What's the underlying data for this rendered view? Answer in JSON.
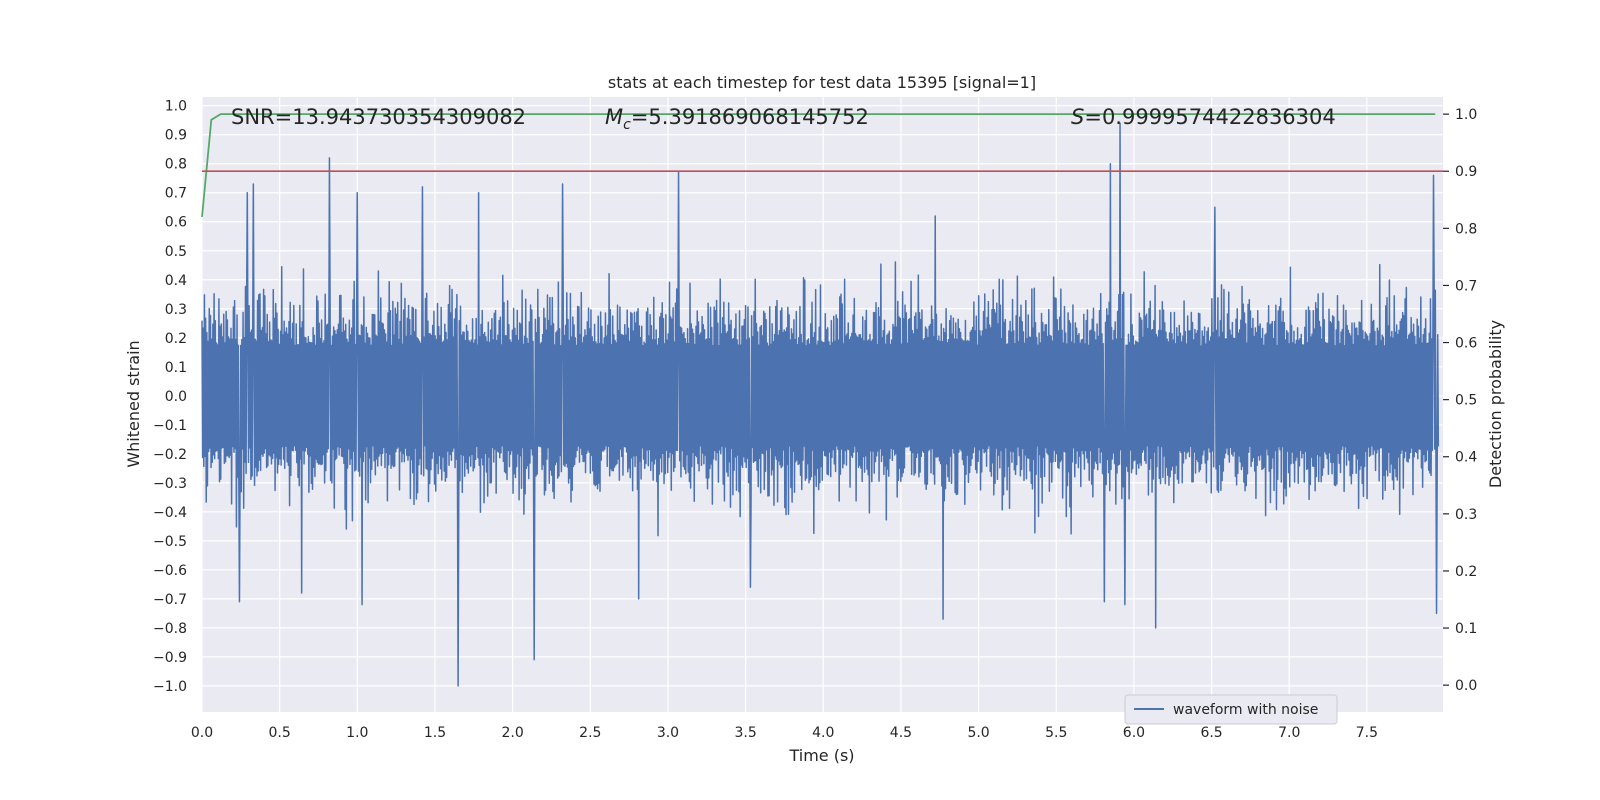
{
  "chart_data": {
    "type": "line",
    "title": "stats at each timestep for test data 15395 [signal=1]",
    "xlabel": "Time (s)",
    "ylabel": "Whitened strain",
    "ylabel_right": "Detection probability",
    "xlim": [
      0.0,
      7.99
    ],
    "ylim": [
      -1.09,
      1.03
    ],
    "ylim_right": [
      -0.047,
      1.03
    ],
    "x_ticks": [
      0.0,
      0.5,
      1.0,
      1.5,
      2.0,
      2.5,
      3.0,
      3.5,
      4.0,
      4.5,
      5.0,
      5.5,
      6.0,
      6.5,
      7.0,
      7.5
    ],
    "x_tick_labels": [
      "0.0",
      "0.5",
      "1.0",
      "1.5",
      "2.0",
      "2.5",
      "3.0",
      "3.5",
      "4.0",
      "4.5",
      "5.0",
      "5.5",
      "6.0",
      "6.5",
      "7.0",
      "7.5"
    ],
    "y_ticks": [
      1.0,
      0.9,
      0.8,
      0.7,
      0.6,
      0.5,
      0.4,
      0.3,
      0.2,
      0.1,
      0.0,
      -0.1,
      -0.2,
      -0.3,
      -0.4,
      -0.5,
      -0.6,
      -0.7,
      -0.8,
      -0.9,
      -1.0
    ],
    "y_tick_labels": [
      "1.0",
      "0.9",
      "0.8",
      "0.7",
      "0.6",
      "0.5",
      "0.4",
      "0.3",
      "0.2",
      "0.1",
      "0.0",
      "−0.1",
      "−0.2",
      "−0.3",
      "−0.4",
      "−0.5",
      "−0.6",
      "−0.7",
      "−0.8",
      "−0.9",
      "−1.0"
    ],
    "y_ticks_right": [
      1.0,
      0.9,
      0.8,
      0.7,
      0.6,
      0.5,
      0.4,
      0.3,
      0.2,
      0.1,
      0.0
    ],
    "y_tick_labels_right": [
      "1.0",
      "0.9",
      "0.8",
      "0.7",
      "0.6",
      "0.5",
      "0.4",
      "0.3",
      "0.2",
      "0.1",
      "0.0"
    ],
    "grid": true,
    "legend_position": "lower-right",
    "annotations": {
      "snr": "SNR=13.943730354309082",
      "mc_symbol": "M",
      "mc_subscript": "c",
      "mc_value": "=5.391869068145752",
      "s_symbol": "S",
      "s_value": "=0.9999574422836304"
    },
    "series": [
      {
        "name": "waveform with noise",
        "axis": "left",
        "color": "#4c72b0",
        "kind": "noise",
        "sample_count": 2048,
        "typical_envelope": [
          -0.38,
          0.38
        ],
        "peaks": [
          {
            "x": 0.82,
            "y": 0.82
          },
          {
            "x": 0.33,
            "y": 0.73
          },
          {
            "x": 0.29,
            "y": 0.7
          },
          {
            "x": 1.42,
            "y": 0.72
          },
          {
            "x": 2.32,
            "y": 0.73
          },
          {
            "x": 3.07,
            "y": 0.77
          },
          {
            "x": 5.85,
            "y": 0.8
          },
          {
            "x": 5.91,
            "y": 0.94
          },
          {
            "x": 7.93,
            "y": 0.76
          },
          {
            "x": 1.0,
            "y": 0.7
          },
          {
            "x": 1.78,
            "y": 0.7
          },
          {
            "x": 4.72,
            "y": 0.62
          },
          {
            "x": 6.52,
            "y": 0.65
          }
        ],
        "troughs": [
          {
            "x": 1.65,
            "y": -1.0
          },
          {
            "x": 2.14,
            "y": -0.91
          },
          {
            "x": 6.14,
            "y": -0.8
          },
          {
            "x": 4.77,
            "y": -0.77
          },
          {
            "x": 5.94,
            "y": -0.72
          },
          {
            "x": 5.81,
            "y": -0.71
          },
          {
            "x": 1.03,
            "y": -0.72
          },
          {
            "x": 0.24,
            "y": -0.71
          },
          {
            "x": 7.95,
            "y": -0.75
          },
          {
            "x": 2.81,
            "y": -0.7
          },
          {
            "x": 0.64,
            "y": -0.68
          },
          {
            "x": 3.53,
            "y": -0.66
          }
        ]
      },
      {
        "name": "",
        "axis": "right",
        "color": "#55a868",
        "kind": "line",
        "x": [
          0.0,
          0.06,
          0.12,
          1.0,
          2.0,
          3.0,
          4.0,
          5.0,
          6.0,
          7.0,
          7.94
        ],
        "y": [
          0.82,
          0.99,
          1.0,
          1.0,
          1.0,
          1.0,
          1.0,
          1.0,
          1.0,
          1.0,
          1.0
        ]
      },
      {
        "name": "",
        "axis": "right",
        "color": "#c44e52",
        "kind": "hline",
        "x": [
          0.0,
          7.99
        ],
        "y": [
          0.9,
          0.9
        ]
      }
    ]
  }
}
